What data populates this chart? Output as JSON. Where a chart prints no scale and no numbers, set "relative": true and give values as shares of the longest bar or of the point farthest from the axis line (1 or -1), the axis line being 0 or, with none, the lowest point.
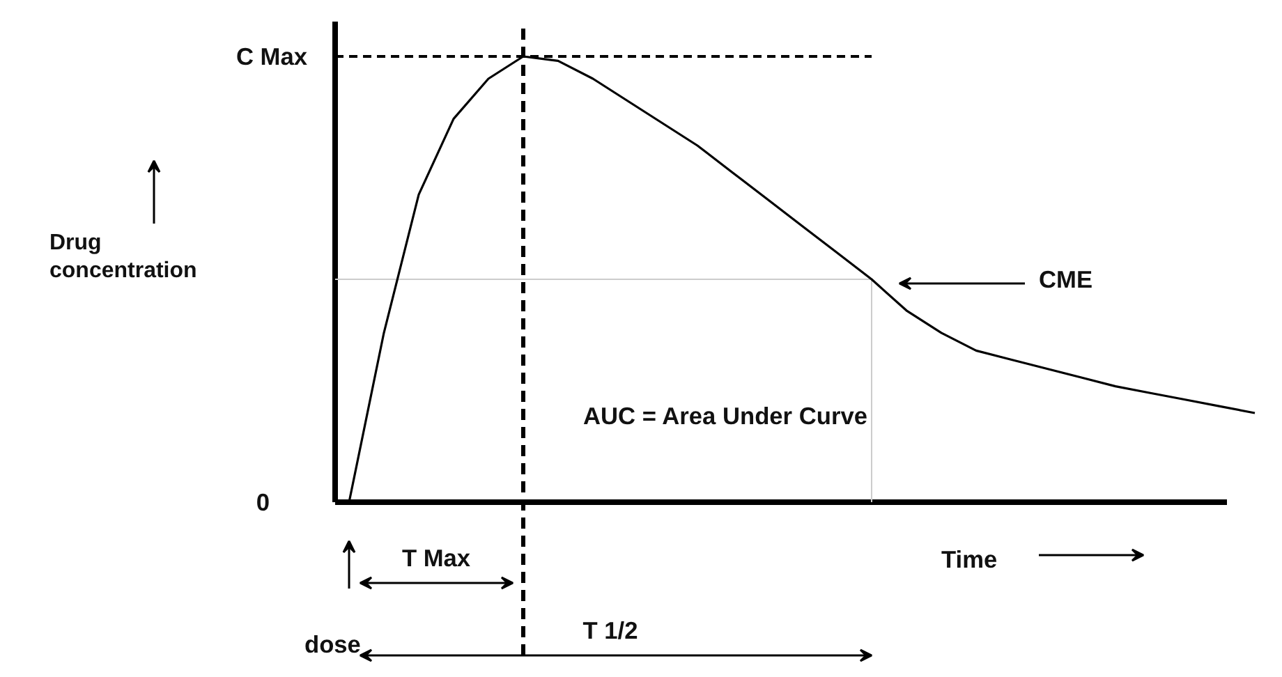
{
  "chart_data": {
    "type": "line",
    "relative": true,
    "categories": [
      null,
      null,
      null,
      null,
      null,
      null,
      null,
      null,
      null,
      null,
      null,
      null,
      null,
      null,
      null,
      null,
      null,
      null,
      null,
      null,
      null,
      null,
      null,
      null,
      null,
      null,
      null
    ],
    "values": [
      0,
      0.38,
      0.69,
      0.86,
      0.95,
      1.0,
      0.99,
      0.95,
      0.9,
      0.85,
      0.8,
      0.74,
      0.68,
      0.62,
      0.56,
      0.5,
      0.43,
      0.38,
      0.34,
      0.32,
      0.3,
      0.28,
      0.26,
      0.245,
      0.23,
      0.215,
      0.2
    ],
    "color": "#000000",
    "line_style": "solid",
    "xlabel": "Time",
    "ref_lines": [
      {
        "axis": "y",
        "value": 1,
        "label": "C Max",
        "line_style": "dashed",
        "color": "#000000"
      },
      {
        "axis": "y",
        "value": 0.5,
        "color": "#cccccc"
      }
    ],
    "annotations": [
      "0",
      "dose",
      "CME",
      "AUC = Area Under Curve",
      "T Max",
      "T 1/2",
      "Drug concentration"
    ]
  }
}
